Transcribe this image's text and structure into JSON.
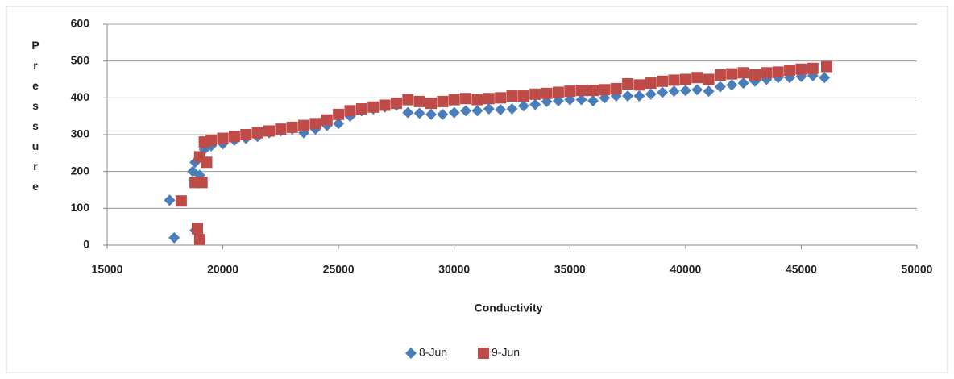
{
  "chart_data": {
    "type": "scatter",
    "xlabel": "Conductivity",
    "ylabel": "Pressure",
    "xlim": [
      15000,
      50000
    ],
    "xticks": [
      15000,
      20000,
      25000,
      30000,
      35000,
      40000,
      45000,
      50000
    ],
    "ylim": [
      0,
      600
    ],
    "yticks": [
      0,
      100,
      200,
      300,
      400,
      500,
      600
    ],
    "grid": true,
    "legend": "bottom",
    "series": [
      {
        "name": "8-Jun",
        "color": "#4a7ebb",
        "marker": "diamond",
        "x": [
          17700,
          17900,
          18700,
          18800,
          18800,
          19000,
          19200,
          19500,
          20000,
          20500,
          21000,
          21500,
          22000,
          22500,
          23000,
          23500,
          24000,
          24500,
          25000,
          25500,
          26000,
          26500,
          27000,
          27500,
          28000,
          28500,
          29000,
          29500,
          30000,
          30500,
          31000,
          31500,
          32000,
          32500,
          33000,
          33500,
          34000,
          34500,
          35000,
          35500,
          36000,
          36500,
          37000,
          37500,
          38000,
          38500,
          39000,
          39500,
          40000,
          40500,
          41000,
          41500,
          42000,
          42500,
          43000,
          43500,
          44000,
          44500,
          45000,
          45500,
          46000
        ],
        "values": [
          122,
          20,
          200,
          225,
          40,
          190,
          260,
          270,
          275,
          285,
          290,
          295,
          305,
          310,
          315,
          305,
          315,
          325,
          330,
          350,
          365,
          370,
          375,
          380,
          360,
          358,
          355,
          355,
          360,
          365,
          365,
          370,
          368,
          370,
          378,
          382,
          390,
          392,
          395,
          395,
          392,
          400,
          405,
          405,
          405,
          410,
          415,
          418,
          420,
          422,
          418,
          430,
          435,
          440,
          445,
          450,
          455,
          455,
          458,
          460,
          455
        ]
      },
      {
        "name": "9-Jun",
        "color": "#be4b48",
        "marker": "square",
        "x": [
          18200,
          18800,
          18900,
          19000,
          19000,
          19100,
          19200,
          19300,
          19500,
          20000,
          20500,
          21000,
          21500,
          22000,
          22500,
          23000,
          23500,
          24000,
          24500,
          25000,
          25500,
          26000,
          26500,
          27000,
          27500,
          28000,
          28500,
          29000,
          29500,
          30000,
          30500,
          31000,
          31500,
          32000,
          32500,
          33000,
          33500,
          34000,
          34500,
          35000,
          35500,
          36000,
          36500,
          37000,
          37500,
          38000,
          38500,
          39000,
          39500,
          40000,
          40500,
          41000,
          41500,
          42000,
          42500,
          43000,
          43500,
          44000,
          44500,
          45000,
          45500,
          46100
        ],
        "values": [
          120,
          170,
          45,
          15,
          240,
          170,
          280,
          225,
          285,
          290,
          295,
          300,
          305,
          310,
          315,
          320,
          325,
          330,
          340,
          355,
          365,
          370,
          375,
          380,
          385,
          395,
          390,
          385,
          390,
          395,
          398,
          395,
          398,
          400,
          405,
          405,
          410,
          412,
          415,
          418,
          420,
          420,
          422,
          425,
          438,
          435,
          440,
          445,
          448,
          450,
          455,
          450,
          462,
          465,
          468,
          462,
          468,
          470,
          475,
          478,
          480,
          485
        ]
      }
    ]
  }
}
